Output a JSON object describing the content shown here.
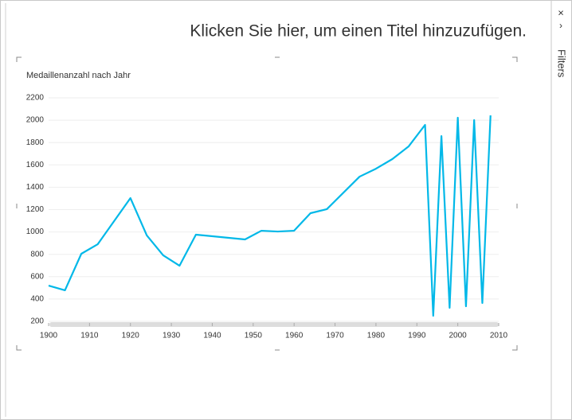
{
  "title": "Klicken Sie hier, um einen Titel hinzuzufügen.",
  "filters_label": "Filters",
  "chart_data": {
    "type": "line",
    "title": "Medaillenanzahl nach Jahr",
    "x": [
      1900,
      1904,
      1908,
      1912,
      1920,
      1924,
      1928,
      1932,
      1936,
      1948,
      1952,
      1956,
      1960,
      1964,
      1968,
      1976,
      1980,
      1984,
      1988,
      1992,
      1994,
      1996,
      1998,
      2000,
      2002,
      2004,
      2006,
      2008
    ],
    "values": [
      520,
      478,
      805,
      890,
      1303,
      969,
      791,
      698,
      976,
      933,
      1011,
      1004,
      1011,
      1168,
      1204,
      1495,
      1566,
      1652,
      1766,
      1958,
      250,
      1858,
      321,
      2022,
      335,
      2001,
      364,
      2043
    ],
    "color": "#01b8e8",
    "xlim": [
      1900,
      2010
    ],
    "xticks": [
      1900,
      1910,
      1920,
      1930,
      1940,
      1950,
      1960,
      1970,
      1980,
      1990,
      2000,
      2010
    ],
    "ylim": [
      200,
      2200
    ],
    "yticks": [
      200,
      400,
      600,
      800,
      1000,
      1200,
      1400,
      1600,
      1800,
      2000,
      2200
    ],
    "grid": true
  }
}
